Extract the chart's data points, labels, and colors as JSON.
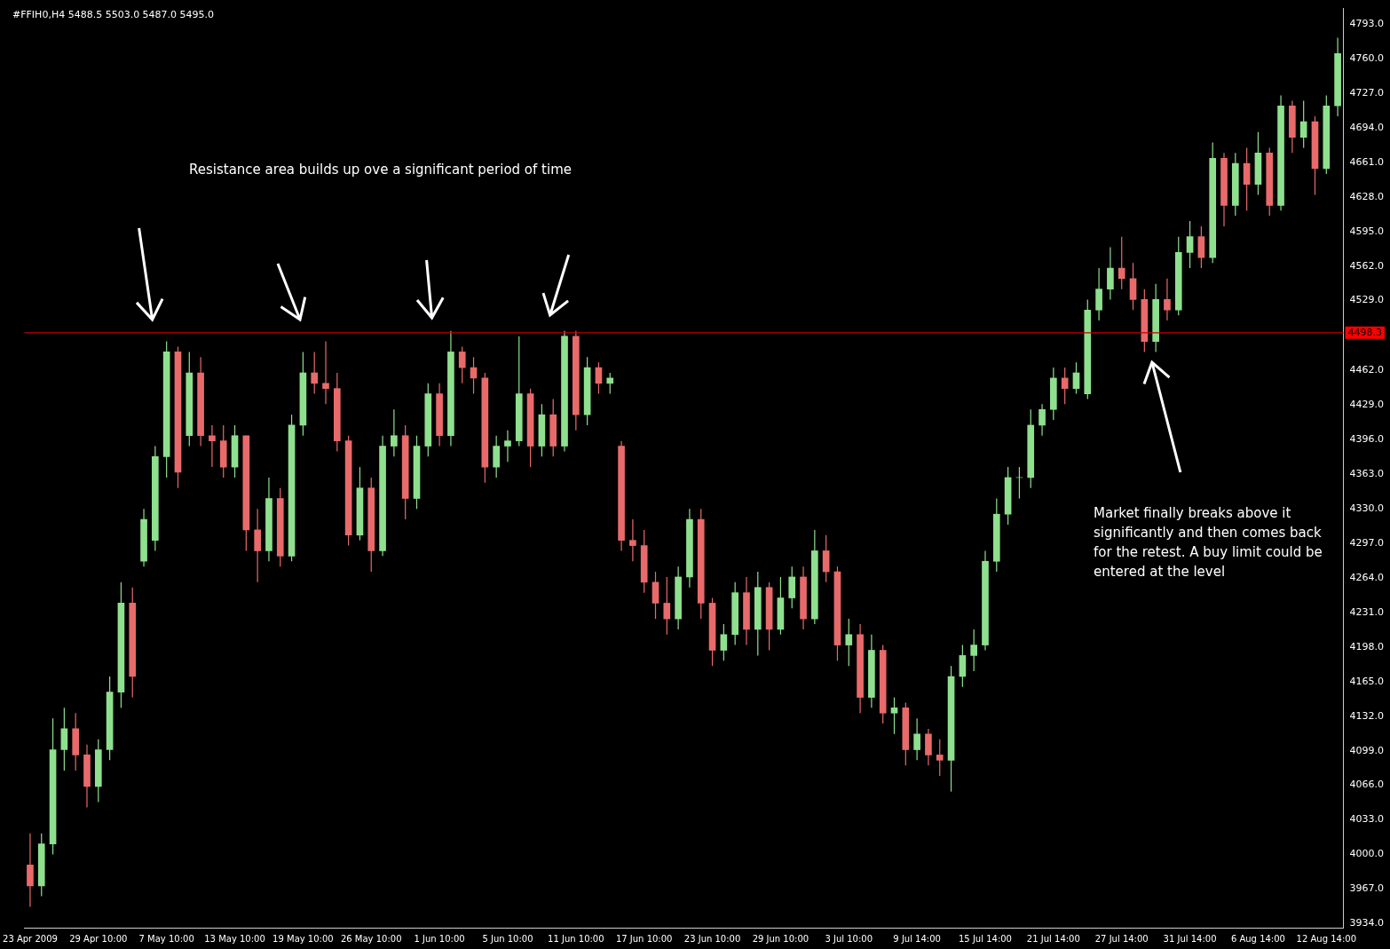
{
  "chart_data": {
    "type": "candlestick",
    "title": "#FFIH0,H4  5488.5 5503.0 5487.0 5495.0",
    "annotations": [
      "Resistance area builds up ove a significant period of time",
      "Market finally breaks above it significantly and then comes back for the retest. A buy limit could be entered at the level"
    ],
    "categories": [
      "23 Apr 2009",
      null,
      null,
      null,
      null,
      null,
      "29 Apr 10:00",
      null,
      null,
      null,
      null,
      null,
      "7 May 10:00",
      null,
      null,
      null,
      null,
      null,
      "13 May 10:00",
      null,
      null,
      null,
      null,
      null,
      "19 May 10:00",
      null,
      null,
      null,
      null,
      null,
      "26 May 10:00",
      null,
      null,
      null,
      null,
      null,
      "1 Jun 10:00",
      null,
      null,
      null,
      null,
      null,
      "5 Jun 10:00",
      null,
      null,
      null,
      null,
      null,
      "11 Jun 10:00",
      null,
      null,
      null,
      null,
      null,
      "17 Jun 10:00",
      null,
      null,
      null,
      null,
      null,
      "23 Jun 10:00",
      null,
      null,
      null,
      null,
      null,
      "29 Jun 10:00",
      null,
      null,
      null,
      null,
      null,
      "3 Jul 10:00",
      null,
      null,
      null,
      null,
      null,
      "9 Jul 14:00",
      null,
      null,
      null,
      null,
      null,
      "15 Jul 14:00",
      null,
      null,
      null,
      null,
      null,
      "21 Jul 14:00",
      null,
      null,
      null,
      null,
      null,
      "27 Jul 14:00",
      null,
      null,
      null,
      null,
      null,
      "31 Jul 14:00",
      null,
      null,
      null,
      null,
      null,
      "6 Aug 14:00",
      null,
      null,
      null,
      null,
      null,
      "12 Aug 14:00",
      null
    ],
    "ohlc": [
      [
        3990,
        4020,
        3950,
        3970
      ],
      [
        3970,
        4020,
        3960,
        4010
      ],
      [
        4010,
        4130,
        4000,
        4100
      ],
      [
        4100,
        4140,
        4080,
        4120
      ],
      [
        4120,
        4135,
        4080,
        4095
      ],
      [
        4095,
        4105,
        4045,
        4065
      ],
      [
        4065,
        4110,
        4050,
        4100
      ],
      [
        4100,
        4170,
        4090,
        4155
      ],
      [
        4155,
        4260,
        4140,
        4240
      ],
      [
        4240,
        4255,
        4150,
        4170
      ],
      [
        4280,
        4330,
        4275,
        4320
      ],
      [
        4300,
        4390,
        4290,
        4380
      ],
      [
        4380,
        4490,
        4360,
        4480
      ],
      [
        4480,
        4485,
        4350,
        4365
      ],
      [
        4400,
        4480,
        4390,
        4460
      ],
      [
        4460,
        4475,
        4390,
        4400
      ],
      [
        4400,
        4410,
        4370,
        4395
      ],
      [
        4395,
        4410,
        4360,
        4370
      ],
      [
        4370,
        4410,
        4360,
        4400
      ],
      [
        4400,
        4400,
        4290,
        4310
      ],
      [
        4310,
        4330,
        4260,
        4290
      ],
      [
        4290,
        4360,
        4280,
        4340
      ],
      [
        4340,
        4350,
        4275,
        4285
      ],
      [
        4285,
        4420,
        4280,
        4410
      ],
      [
        4410,
        4480,
        4400,
        4460
      ],
      [
        4460,
        4480,
        4440,
        4450
      ],
      [
        4450,
        4490,
        4430,
        4445
      ],
      [
        4445,
        4460,
        4385,
        4395
      ],
      [
        4395,
        4400,
        4295,
        4305
      ],
      [
        4305,
        4370,
        4300,
        4350
      ],
      [
        4350,
        4360,
        4270,
        4290
      ],
      [
        4290,
        4400,
        4285,
        4390
      ],
      [
        4390,
        4425,
        4380,
        4400
      ],
      [
        4400,
        4410,
        4320,
        4340
      ],
      [
        4340,
        4400,
        4330,
        4390
      ],
      [
        4390,
        4450,
        4380,
        4440
      ],
      [
        4440,
        4450,
        4390,
        4400
      ],
      [
        4400,
        4500,
        4390,
        4480
      ],
      [
        4480,
        4485,
        4450,
        4465
      ],
      [
        4465,
        4475,
        4440,
        4455
      ],
      [
        4455,
        4460,
        4355,
        4370
      ],
      [
        4370,
        4400,
        4360,
        4390
      ],
      [
        4390,
        4405,
        4375,
        4395
      ],
      [
        4395,
        4495,
        4390,
        4440
      ],
      [
        4440,
        4445,
        4370,
        4390
      ],
      [
        4390,
        4430,
        4380,
        4420
      ],
      [
        4420,
        4435,
        4380,
        4390
      ],
      [
        4390,
        4500,
        4385,
        4495
      ],
      [
        4495,
        4500,
        4405,
        4420
      ],
      [
        4420,
        4475,
        4410,
        4465
      ],
      [
        4465,
        4470,
        4440,
        4450
      ],
      [
        4450,
        4460,
        4440,
        4455
      ],
      [
        4390,
        4395,
        4290,
        4300
      ],
      [
        4300,
        4320,
        4280,
        4295
      ],
      [
        4295,
        4310,
        4250,
        4260
      ],
      [
        4260,
        4270,
        4225,
        4240
      ],
      [
        4240,
        4265,
        4210,
        4225
      ],
      [
        4225,
        4275,
        4215,
        4265
      ],
      [
        4265,
        4330,
        4255,
        4320
      ],
      [
        4320,
        4330,
        4225,
        4240
      ],
      [
        4240,
        4245,
        4180,
        4195
      ],
      [
        4195,
        4220,
        4185,
        4210
      ],
      [
        4210,
        4260,
        4200,
        4250
      ],
      [
        4250,
        4265,
        4200,
        4215
      ],
      [
        4215,
        4270,
        4190,
        4255
      ],
      [
        4255,
        4260,
        4195,
        4215
      ],
      [
        4215,
        4265,
        4210,
        4245
      ],
      [
        4245,
        4275,
        4235,
        4265
      ],
      [
        4265,
        4275,
        4215,
        4225
      ],
      [
        4225,
        4310,
        4220,
        4290
      ],
      [
        4290,
        4305,
        4260,
        4270
      ],
      [
        4270,
        4275,
        4185,
        4200
      ],
      [
        4200,
        4225,
        4180,
        4210
      ],
      [
        4210,
        4220,
        4135,
        4150
      ],
      [
        4150,
        4210,
        4140,
        4195
      ],
      [
        4195,
        4200,
        4125,
        4135
      ],
      [
        4135,
        4150,
        4115,
        4140
      ],
      [
        4140,
        4145,
        4085,
        4100
      ],
      [
        4100,
        4130,
        4090,
        4115
      ],
      [
        4115,
        4120,
        4085,
        4095
      ],
      [
        4095,
        4110,
        4075,
        4090
      ],
      [
        4090,
        4180,
        4060,
        4170
      ],
      [
        4170,
        4200,
        4160,
        4190
      ],
      [
        4190,
        4215,
        4175,
        4200
      ],
      [
        4200,
        4290,
        4195,
        4280
      ],
      [
        4280,
        4340,
        4270,
        4325
      ],
      [
        4325,
        4370,
        4315,
        4360
      ],
      [
        4360,
        4370,
        4340,
        4360
      ],
      [
        4360,
        4425,
        4350,
        4410
      ],
      [
        4410,
        4430,
        4400,
        4425
      ],
      [
        4425,
        4465,
        4415,
        4455
      ],
      [
        4455,
        4465,
        4430,
        4445
      ],
      [
        4445,
        4470,
        4440,
        4460
      ],
      [
        4440,
        4530,
        4435,
        4520
      ],
      [
        4520,
        4560,
        4510,
        4540
      ],
      [
        4540,
        4580,
        4530,
        4560
      ],
      [
        4560,
        4590,
        4540,
        4550
      ],
      [
        4550,
        4565,
        4520,
        4530
      ],
      [
        4530,
        4540,
        4480,
        4490
      ],
      [
        4490,
        4545,
        4480,
        4530
      ],
      [
        4530,
        4550,
        4510,
        4520
      ],
      [
        4520,
        4590,
        4515,
        4575
      ],
      [
        4575,
        4605,
        4560,
        4590
      ],
      [
        4590,
        4600,
        4560,
        4570
      ],
      [
        4570,
        4680,
        4565,
        4665
      ],
      [
        4665,
        4670,
        4600,
        4620
      ],
      [
        4620,
        4670,
        4610,
        4660
      ],
      [
        4660,
        4675,
        4615,
        4640
      ],
      [
        4640,
        4690,
        4630,
        4670
      ],
      [
        4670,
        4675,
        4610,
        4620
      ],
      [
        4620,
        4725,
        4615,
        4715
      ],
      [
        4715,
        4720,
        4670,
        4685
      ],
      [
        4685,
        4720,
        4675,
        4700
      ],
      [
        4700,
        4705,
        4630,
        4655
      ],
      [
        4655,
        4725,
        4650,
        4715
      ],
      [
        4715,
        4780,
        4705,
        4765
      ]
    ],
    "colors": [
      "#e86a6a",
      "#8ee08e",
      "#8ee08e",
      "#8ee08e",
      "#e86a6a",
      "#e86a6a",
      "#8ee08e",
      "#8ee08e",
      "#8ee08e",
      "#e86a6a",
      "#8ee08e",
      "#8ee08e",
      "#8ee08e",
      "#e86a6a",
      "#8ee08e",
      "#e86a6a",
      "#e86a6a",
      "#e86a6a",
      "#8ee08e",
      "#e86a6a",
      "#e86a6a",
      "#8ee08e",
      "#e86a6a",
      "#8ee08e",
      "#8ee08e",
      "#e86a6a",
      "#e86a6a",
      "#e86a6a",
      "#e86a6a",
      "#8ee08e",
      "#e86a6a",
      "#8ee08e",
      "#8ee08e",
      "#e86a6a",
      "#8ee08e",
      "#8ee08e",
      "#e86a6a",
      "#8ee08e",
      "#e86a6a",
      "#e86a6a",
      "#e86a6a",
      "#8ee08e",
      "#8ee08e",
      "#8ee08e",
      "#e86a6a",
      "#8ee08e",
      "#e86a6a",
      "#8ee08e",
      "#e86a6a",
      "#8ee08e",
      "#e86a6a",
      "#8ee08e",
      "#e86a6a",
      "#e86a6a",
      "#e86a6a",
      "#e86a6a",
      "#e86a6a",
      "#8ee08e",
      "#8ee08e",
      "#e86a6a",
      "#e86a6a",
      "#8ee08e",
      "#8ee08e",
      "#e86a6a",
      "#8ee08e",
      "#e86a6a",
      "#8ee08e",
      "#8ee08e",
      "#e86a6a",
      "#8ee08e",
      "#e86a6a",
      "#e86a6a",
      "#8ee08e",
      "#e86a6a",
      "#8ee08e",
      "#e86a6a",
      "#8ee08e",
      "#e86a6a",
      "#8ee08e",
      "#e86a6a",
      "#e86a6a",
      "#8ee08e",
      "#8ee08e",
      "#8ee08e",
      "#8ee08e",
      "#8ee08e",
      "#8ee08e",
      "#8ee08e",
      "#8ee08e",
      "#8ee08e",
      "#8ee08e",
      "#e86a6a",
      "#8ee08e",
      "#8ee08e",
      "#8ee08e",
      "#8ee08e",
      "#e86a6a",
      "#e86a6a",
      "#e86a6a",
      "#8ee08e",
      "#e86a6a",
      "#8ee08e",
      "#8ee08e",
      "#e86a6a",
      "#8ee08e",
      "#e86a6a",
      "#8ee08e",
      "#e86a6a",
      "#8ee08e",
      "#e86a6a",
      "#8ee08e",
      "#e86a6a",
      "#8ee08e",
      "#e86a6a",
      "#8ee08e",
      "#8ee08e"
    ],
    "ylim": [
      3930,
      4808
    ],
    "yticks": [
      {
        "value": 3934,
        "label": "3934.0"
      },
      {
        "value": 3967,
        "label": "3967.0"
      },
      {
        "value": 4000,
        "label": "4000.0"
      },
      {
        "value": 4033,
        "label": "4033.0"
      },
      {
        "value": 4066,
        "label": "4066.0"
      },
      {
        "value": 4099,
        "label": "4099.0"
      },
      {
        "value": 4132,
        "label": "4132.0"
      },
      {
        "value": 4165,
        "label": "4165.0"
      },
      {
        "value": 4198,
        "label": "4198.0"
      },
      {
        "value": 4231,
        "label": "4231.0"
      },
      {
        "value": 4264,
        "label": "4264.0"
      },
      {
        "value": 4297,
        "label": "4297.0"
      },
      {
        "value": 4330,
        "label": "4330.0"
      },
      {
        "value": 4363,
        "label": "4363.0"
      },
      {
        "value": 4396,
        "label": "4396.0"
      },
      {
        "value": 4429,
        "label": "4429.0"
      },
      {
        "value": 4462,
        "label": "4462.0"
      },
      {
        "value": 4529,
        "label": "4529.0"
      },
      {
        "value": 4562,
        "label": "4562.0"
      },
      {
        "value": 4595,
        "label": "4595.0"
      },
      {
        "value": 4628,
        "label": "4628.0"
      },
      {
        "value": 4661,
        "label": "4661.0"
      },
      {
        "value": 4694,
        "label": "4694.0"
      },
      {
        "value": 4727,
        "label": "4727.0"
      },
      {
        "value": 4760,
        "label": "4760.0"
      },
      {
        "value": 4793,
        "label": "4793.0"
      }
    ],
    "ref_lines": [
      {
        "axis": "y",
        "value": 4498.3,
        "label": "4498.3",
        "color": "#c00000"
      }
    ],
    "grid": false
  }
}
